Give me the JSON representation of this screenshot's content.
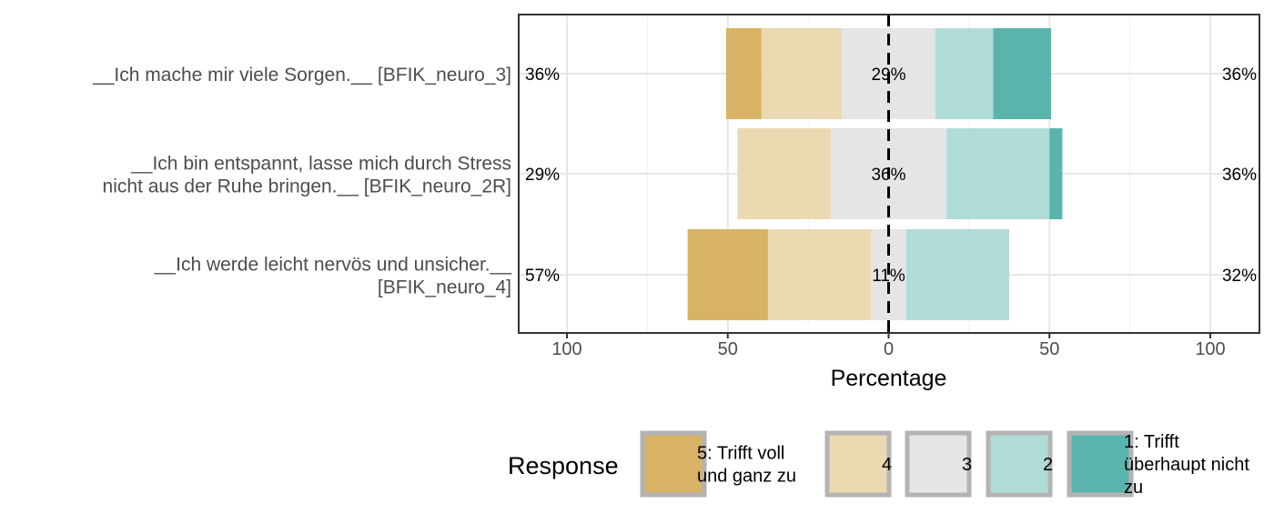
{
  "chart_data": {
    "type": "bar",
    "orientation": "horizontal-diverging",
    "xlabel": "Percentage",
    "xlim": [
      -115,
      115
    ],
    "xticks": [
      -100,
      -50,
      0,
      50,
      100
    ],
    "xtick_labels": [
      "100",
      "50",
      "0",
      "50",
      "100"
    ],
    "grid": true,
    "legend_position": "bottom",
    "legend_title": "Response",
    "categories": [
      "__Ich mache mir viele Sorgen.__ [BFIK_neuro_3]",
      "__Ich bin entspannt, lasse mich durch Stress nicht aus der Ruhe bringen.__ [BFIK_neuro_2R]",
      "__Ich werde leicht nervös und unsicher.__ [BFIK_neuro_4]"
    ],
    "category_lines": [
      [
        "__Ich mache mir viele Sorgen.__ [BFIK_neuro_3]"
      ],
      [
        "__Ich bin entspannt, lasse mich durch Stress",
        "nicht aus der Ruhe bringen.__ [BFIK_neuro_2R]"
      ],
      [
        "__Ich werde leicht nervös und unsicher.__",
        "[BFIK_neuro_4]"
      ]
    ],
    "series": [
      {
        "name": "5: Trifft voll und ganz zu",
        "legend_lines": [
          "5: Trifft voll",
          "und ganz zu"
        ],
        "color": "#D8B365",
        "values": [
          11,
          0,
          25
        ]
      },
      {
        "name": "4",
        "legend_lines": [
          "4"
        ],
        "color": "#EBD9B2",
        "values": [
          25,
          29,
          32
        ]
      },
      {
        "name": "3",
        "legend_lines": [
          "3"
        ],
        "color": "#E5E5E5",
        "values": [
          29,
          36,
          11
        ]
      },
      {
        "name": "2",
        "legend_lines": [
          "2"
        ],
        "color": "#B0DCD8",
        "values": [
          18,
          32,
          32
        ]
      },
      {
        "name": "1: Trifft überhaupt nicht zu",
        "legend_lines": [
          "1: Trifft",
          "überhaupt nicht",
          "zu"
        ],
        "color": "#5AB4AC",
        "values": [
          18,
          4,
          0
        ]
      }
    ],
    "left_labels": [
      "36%",
      "29%",
      "57%"
    ],
    "center_labels": [
      "29%",
      "36%",
      "11%"
    ],
    "right_labels": [
      "36%",
      "36%",
      "32%"
    ]
  }
}
